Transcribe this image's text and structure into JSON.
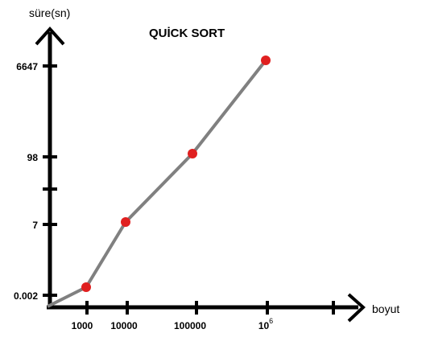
{
  "chart_data": {
    "type": "line",
    "title": "QUİCK SORT",
    "ylabel": "süre(sn)",
    "xlabel": "boyut",
    "x_ticks": [
      "1000",
      "10000",
      "100000",
      "10^6"
    ],
    "x_tick_display": {
      "base": "10",
      "exponent": "6"
    },
    "y_ticks": [
      "0.002",
      "7",
      "98",
      "6647"
    ],
    "series": [
      {
        "x": [
          "1000",
          "10000",
          "100000",
          "10^6"
        ],
        "values": [
          0.002,
          7,
          98,
          6647
        ]
      }
    ],
    "origin": {
      "x": 0,
      "y": 0
    },
    "colors": {
      "line": "#808080",
      "marker": "#e02020",
      "axis": "#000000"
    },
    "grid": false,
    "legend": "none"
  }
}
